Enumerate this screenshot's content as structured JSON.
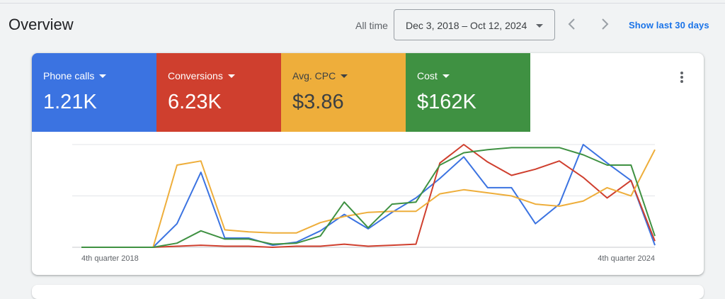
{
  "header": {
    "title": "Overview",
    "all_time_label": "All time",
    "date_range": "Dec 3, 2018 – Oct 12, 2024",
    "show_last": "Show last 30 days"
  },
  "metrics": [
    {
      "label": "Phone calls",
      "value": "1.21K",
      "color": "#3b73e1"
    },
    {
      "label": "Conversions",
      "value": "6.23K",
      "color": "#cf3f2e"
    },
    {
      "label": "Avg. CPC",
      "value": "$3.86",
      "color": "#eeae3b"
    },
    {
      "label": "Cost",
      "value": "$162K",
      "color": "#3f9142"
    }
  ],
  "chart_data": {
    "type": "line",
    "x": [
      "4th quarter 2018",
      "",
      "",
      "",
      "",
      "",
      "",
      "",
      "",
      "",
      "",
      "",
      "",
      "",
      "",
      "",
      "",
      "",
      "",
      "",
      "",
      "",
      "",
      "",
      "4th quarter 2024"
    ],
    "x_tick_labels": [
      "4th quarter 2018",
      "4th quarter 2024"
    ],
    "ylim": [
      0,
      100
    ],
    "grid": true,
    "series": [
      {
        "color": "#3b73e1",
        "values": [
          0,
          0,
          0,
          0,
          23,
          73,
          9,
          9,
          2,
          5,
          16,
          32,
          18,
          34,
          48,
          67,
          88,
          58,
          58,
          23,
          42,
          100,
          82,
          65,
          2
        ]
      },
      {
        "color": "#cf3f2e",
        "values": [
          0,
          0,
          0,
          0,
          1,
          2,
          1,
          1,
          0,
          1,
          1,
          3,
          1,
          2,
          3,
          82,
          100,
          83,
          70,
          76,
          84,
          68,
          48,
          65,
          6
        ]
      },
      {
        "color": "#eeae3b",
        "values": [
          0,
          0,
          0,
          0,
          80,
          84,
          17,
          15,
          14,
          14,
          24,
          30,
          34,
          35,
          35,
          52,
          56,
          53,
          50,
          42,
          40,
          45,
          58,
          50,
          95
        ]
      },
      {
        "color": "#3f9142",
        "values": [
          0,
          0,
          0,
          0,
          4,
          16,
          8,
          8,
          3,
          4,
          11,
          44,
          19,
          42,
          44,
          80,
          92,
          95,
          97,
          97,
          97,
          90,
          80,
          80,
          11
        ]
      }
    ]
  }
}
